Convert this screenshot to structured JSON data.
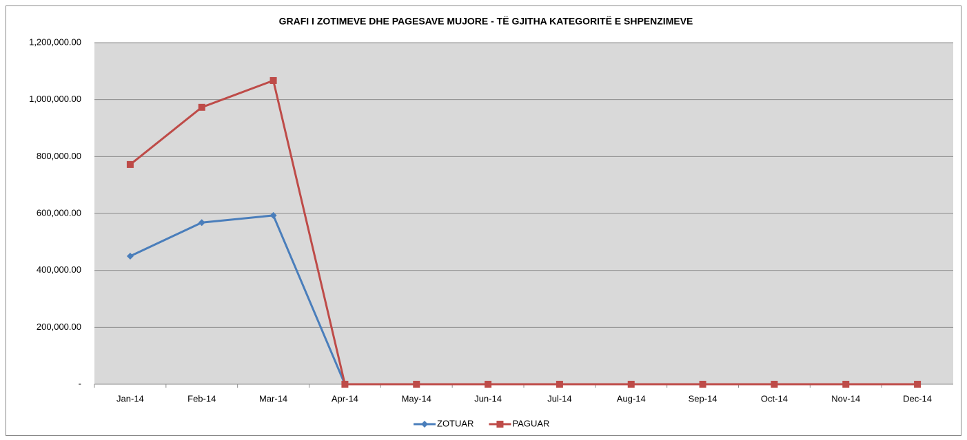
{
  "chart_data": {
    "type": "line",
    "title": "GRAFI I ZOTIMEVE DHE PAGESAVE MUJORE - TË GJITHA KATEGORITË E SHPENZIMEVE",
    "categories": [
      "Jan-14",
      "Feb-14",
      "Mar-14",
      "Apr-14",
      "May-14",
      "Jun-14",
      "Jul-14",
      "Aug-14",
      "Sep-14",
      "Oct-14",
      "Nov-14",
      "Dec-14"
    ],
    "series": [
      {
        "name": "ZOTUAR",
        "color": "#4a7ebb",
        "marker": "diamond",
        "values": [
          450000,
          568000,
          593000,
          0,
          0,
          0,
          0,
          0,
          0,
          0,
          0,
          0
        ]
      },
      {
        "name": "PAGUAR",
        "color": "#be4b48",
        "marker": "square",
        "values": [
          772000,
          973000,
          1067000,
          0,
          0,
          0,
          0,
          0,
          0,
          0,
          0,
          0
        ]
      }
    ],
    "ylim": [
      0,
      1200000
    ],
    "yticks": [
      {
        "value": 0,
        "label": "-"
      },
      {
        "value": 200000,
        "label": "200,000.00"
      },
      {
        "value": 400000,
        "label": "400,000.00"
      },
      {
        "value": 600000,
        "label": "600,000.00"
      },
      {
        "value": 800000,
        "label": "800,000.00"
      },
      {
        "value": 1000000,
        "label": "1,000,000.00"
      },
      {
        "value": 1200000,
        "label": "1,200,000.00"
      }
    ],
    "grid": true,
    "legend": "bottom"
  }
}
